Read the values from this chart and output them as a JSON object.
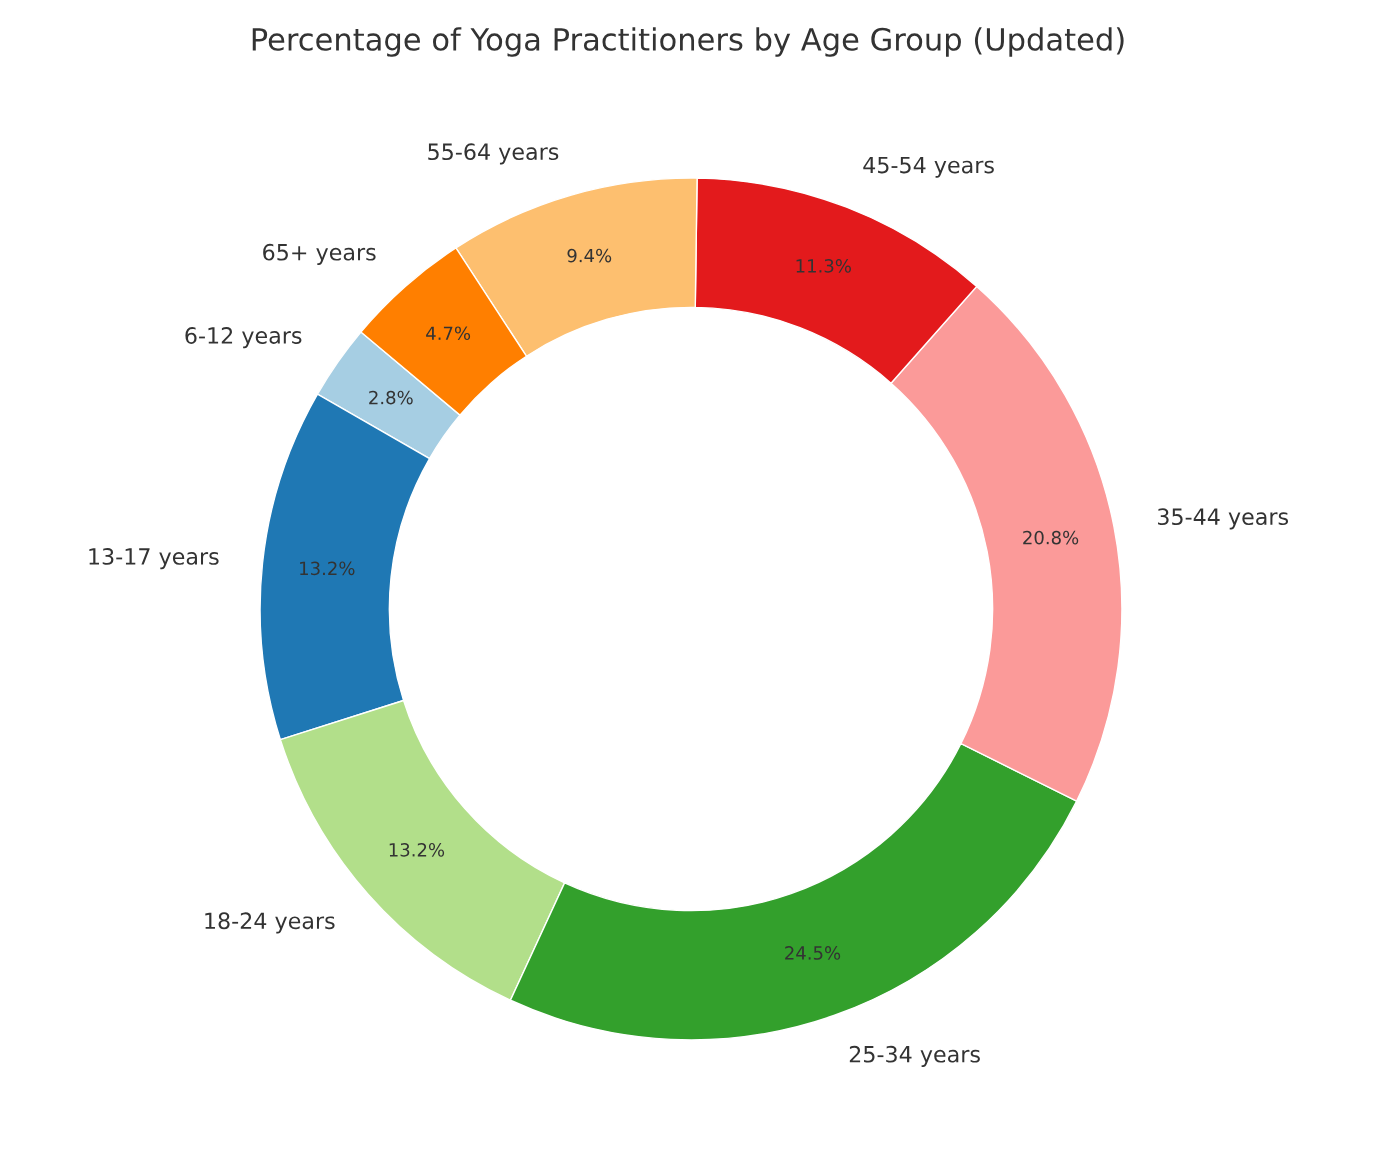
{
  "chart_data": {
    "type": "donut",
    "title": "Percentage of Yoga Practitioners by Age Group (Updated)",
    "categories": [
      "6-12 years",
      "13-17 years",
      "18-24 years",
      "25-34 years",
      "35-44 years",
      "45-54 years",
      "55-64 years",
      "65+ years"
    ],
    "values": [
      2.8,
      13.2,
      13.2,
      24.5,
      20.8,
      11.3,
      9.4,
      4.7
    ],
    "value_labels": [
      "2.8%",
      "13.2%",
      "13.2%",
      "24.5%",
      "20.8%",
      "11.3%",
      "9.4%",
      "4.7%"
    ],
    "colors": [
      "#a6cee3",
      "#1f78b4",
      "#b2df8a",
      "#33a02c",
      "#fb9a99",
      "#e31a1c",
      "#fdbf6f",
      "#ff7f00"
    ],
    "legend": false
  }
}
